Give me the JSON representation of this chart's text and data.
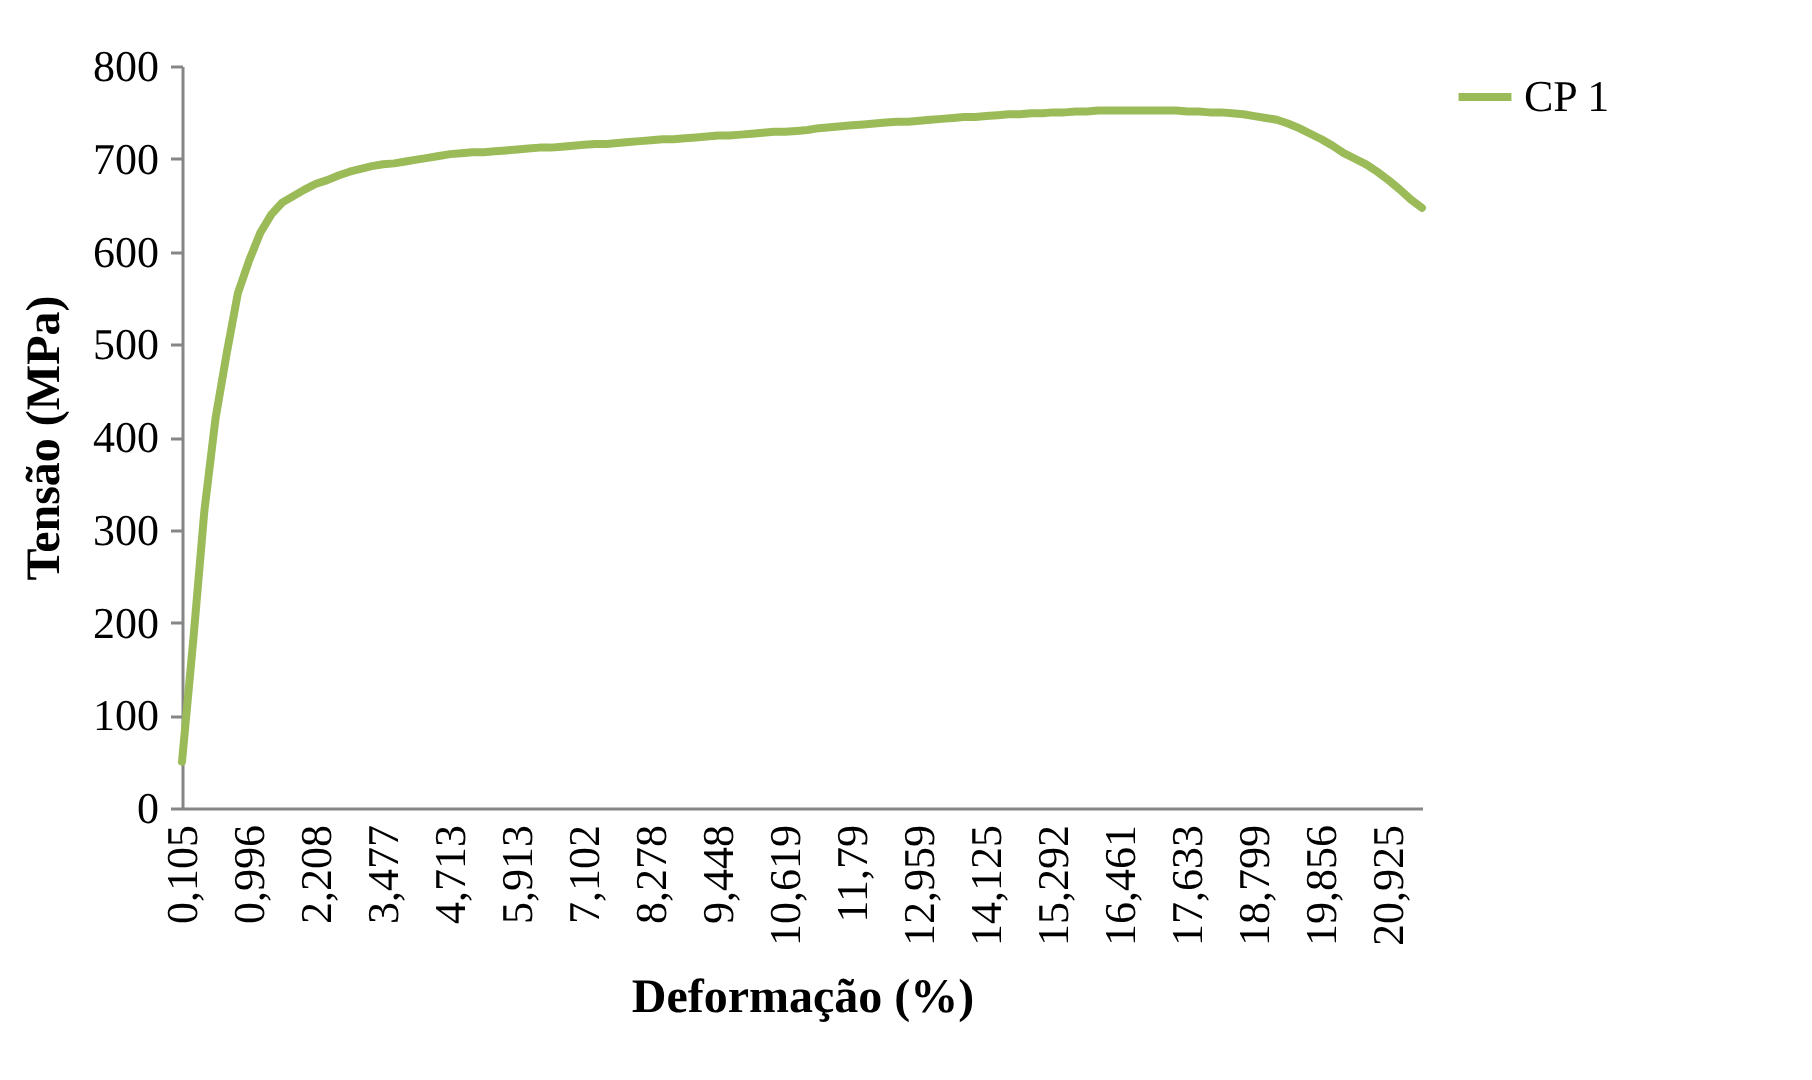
{
  "chart_data": {
    "type": "line",
    "xlabel": "Deformação (%)",
    "ylabel": "Tensão (MPa)",
    "categories": [
      "0,105",
      null,
      null,
      null,
      null,
      null,
      "0,996",
      null,
      null,
      null,
      null,
      null,
      "2,208",
      null,
      null,
      null,
      null,
      null,
      "3,477",
      null,
      null,
      null,
      null,
      null,
      "4,713",
      null,
      null,
      null,
      null,
      null,
      "5,913",
      null,
      null,
      null,
      null,
      null,
      "7,102",
      null,
      null,
      null,
      null,
      null,
      "8,278",
      null,
      null,
      null,
      null,
      null,
      "9,448",
      null,
      null,
      null,
      null,
      null,
      "10,619",
      null,
      null,
      null,
      null,
      null,
      "11,79",
      null,
      null,
      null,
      null,
      null,
      "12,959",
      null,
      null,
      null,
      null,
      null,
      "14,125",
      null,
      null,
      null,
      null,
      null,
      "15,292",
      null,
      null,
      null,
      null,
      null,
      "16,461",
      null,
      null,
      null,
      null,
      null,
      "17,633",
      null,
      null,
      null,
      null,
      null,
      "18,799",
      null,
      null,
      null,
      null,
      null,
      "19,856",
      null,
      null,
      null,
      null,
      null,
      "20,925",
      null,
      null,
      null
    ],
    "series": [
      {
        "name": "CP 1",
        "color": "#9bbb59",
        "values": [
          50,
          180,
          320,
          420,
          490,
          555,
          590,
          620,
          640,
          653,
          660,
          667,
          673,
          677,
          682,
          686,
          689,
          692,
          694,
          695,
          697,
          699,
          701,
          703,
          705,
          706,
          707,
          707,
          708,
          709,
          710,
          711,
          712,
          712,
          713,
          714,
          715,
          716,
          716,
          717,
          718,
          719,
          720,
          721,
          721,
          722,
          723,
          724,
          725,
          725,
          726,
          727,
          728,
          729,
          729,
          730,
          731,
          733,
          734,
          735,
          736,
          737,
          738,
          739,
          740,
          740,
          741,
          742,
          743,
          744,
          745,
          745,
          746,
          747,
          748,
          748,
          749,
          749,
          750,
          750,
          751,
          751,
          752,
          752,
          752,
          752,
          752,
          752,
          752,
          752,
          751,
          751,
          750,
          750,
          749,
          748,
          746,
          744,
          742,
          738,
          733,
          727,
          721,
          714,
          706,
          700,
          694,
          686,
          677,
          667,
          656,
          647
        ]
      }
    ],
    "ylim": [
      0,
      800
    ],
    "yticks": [
      0,
      100,
      200,
      300,
      400,
      500,
      600,
      700,
      800
    ],
    "grid": false,
    "legend": "right",
    "marker": "none",
    "line_style": "solid"
  }
}
